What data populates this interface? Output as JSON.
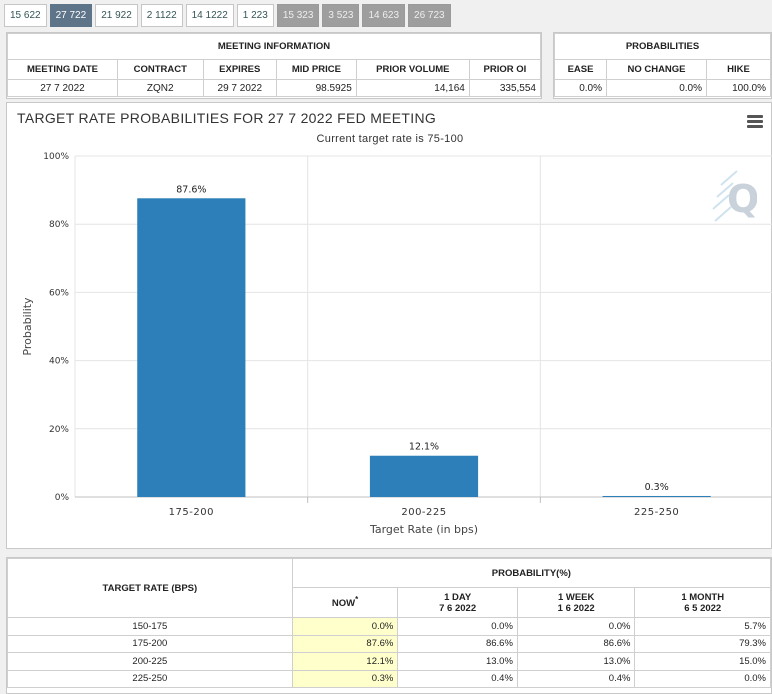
{
  "tabs": [
    {
      "label": "15 622",
      "state": "normal"
    },
    {
      "label": "27 722",
      "state": "active"
    },
    {
      "label": "21 922",
      "state": "normal"
    },
    {
      "label": "2 1122",
      "state": "normal"
    },
    {
      "label": "14 1222",
      "state": "normal"
    },
    {
      "label": "1 223",
      "state": "normal"
    },
    {
      "label": "15 323",
      "state": "dim"
    },
    {
      "label": "3 523",
      "state": "dim"
    },
    {
      "label": "14 623",
      "state": "dim"
    },
    {
      "label": "26 723",
      "state": "dim"
    }
  ],
  "meeting_info": {
    "header": "MEETING INFORMATION",
    "columns": [
      "MEETING DATE",
      "CONTRACT",
      "EXPIRES",
      "MID PRICE",
      "PRIOR VOLUME",
      "PRIOR OI"
    ],
    "row": [
      "27 7 2022",
      "ZQN2",
      "29 7 2022",
      "98.5925",
      "14,164",
      "335,554"
    ]
  },
  "probabilities": {
    "header": "PROBABILITIES",
    "columns": [
      "EASE",
      "NO CHANGE",
      "HIKE"
    ],
    "row": [
      "0.0%",
      "0.0%",
      "100.0%"
    ]
  },
  "chart_data": {
    "type": "bar",
    "title": "TARGET RATE PROBABILITIES FOR 27 7 2022 FED MEETING",
    "subtitle": "Current target rate is 75-100",
    "xlabel": "Target Rate (in bps)",
    "ylabel": "Probability",
    "categories": [
      "175-200",
      "200-225",
      "225-250"
    ],
    "values": [
      87.6,
      12.1,
      0.3
    ],
    "data_labels": [
      "87.6%",
      "12.1%",
      "0.3%"
    ],
    "ylim": [
      0,
      100
    ],
    "yticks": [
      "0%",
      "20%",
      "40%",
      "60%",
      "80%",
      "100%"
    ],
    "ytick_values": [
      0,
      20,
      40,
      60,
      80,
      100
    ],
    "bar_color": "#2c7fb8",
    "grid": true
  },
  "prob_table": {
    "row_header": "TARGET RATE (BPS)",
    "group_header": "PROBABILITY(%)",
    "columns": [
      {
        "line1": "NOW",
        "line2": "",
        "sup": "*"
      },
      {
        "line1": "1 DAY",
        "line2": "7 6 2022"
      },
      {
        "line1": "1 WEEK",
        "line2": "1 6 2022"
      },
      {
        "line1": "1 MONTH",
        "line2": "6 5 2022"
      }
    ],
    "rows": [
      {
        "rate": "150-175",
        "values": [
          "0.0%",
          "0.0%",
          "0.0%",
          "5.7%"
        ]
      },
      {
        "rate": "175-200",
        "values": [
          "87.6%",
          "86.6%",
          "86.6%",
          "79.3%"
        ]
      },
      {
        "rate": "200-225",
        "values": [
          "12.1%",
          "13.0%",
          "13.0%",
          "15.0%"
        ]
      },
      {
        "rate": "225-250",
        "values": [
          "0.3%",
          "0.4%",
          "0.4%",
          "0.0%"
        ]
      }
    ]
  }
}
